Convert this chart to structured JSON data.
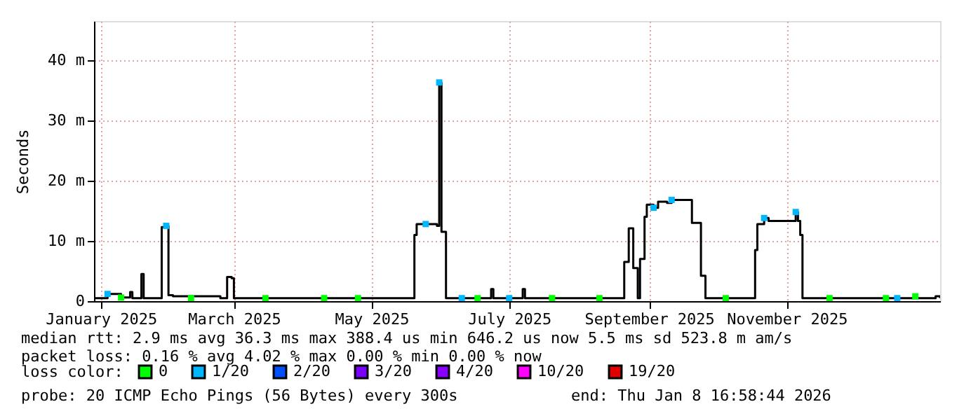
{
  "chart_data": {
    "type": "step",
    "ylabel": "Seconds",
    "legend_title": "loss color:",
    "legend": "bottom",
    "grid": true,
    "xlim": [
      "2024-12-29",
      "2026-01-08"
    ],
    "xticks": [
      {
        "value": "2025-01-01",
        "label": "January 2025"
      },
      {
        "value": "2025-03-01",
        "label": "March 2025"
      },
      {
        "value": "2025-05-01",
        "label": "May 2025"
      },
      {
        "value": "2025-07-01",
        "label": "July 2025"
      },
      {
        "value": "2025-09-01",
        "label": "September 2025"
      },
      {
        "value": "2025-11-01",
        "label": "November 2025"
      }
    ],
    "ylim": [
      0,
      46.5
    ],
    "yticks": [
      {
        "value": 0,
        "label": "0"
      },
      {
        "value": 10,
        "label": "10 m"
      },
      {
        "value": 20,
        "label": "20 m"
      },
      {
        "value": 30,
        "label": "30 m"
      },
      {
        "value": 40,
        "label": "40 m"
      }
    ],
    "series": [
      {
        "color": "#000000",
        "line_style": "solid",
        "x": [
          "2024-12-29",
          "2025-01-04",
          "2025-01-10",
          "2025-01-14",
          "2025-01-15",
          "2025-01-19",
          "2025-01-20",
          "2025-01-28",
          "2025-01-30",
          "2025-01-31",
          "2025-02-02",
          "2025-02-23",
          "2025-02-26",
          "2025-02-28",
          "2025-03-01",
          "2025-05-20",
          "2025-05-21",
          "2025-05-30",
          "2025-05-31",
          "2025-06-01",
          "2025-06-03",
          "2025-06-23",
          "2025-06-24",
          "2025-07-07",
          "2025-07-08",
          "2025-08-21",
          "2025-08-23",
          "2025-08-25",
          "2025-08-27",
          "2025-08-28",
          "2025-08-30",
          "2025-08-31",
          "2025-09-03",
          "2025-09-05",
          "2025-09-09",
          "2025-09-11",
          "2025-09-19",
          "2025-09-20",
          "2025-09-24",
          "2025-09-26",
          "2025-10-18",
          "2025-10-19",
          "2025-10-22",
          "2025-10-24",
          "2025-11-04",
          "2025-11-05",
          "2025-11-06",
          "2025-11-07",
          "2025-11-08",
          "2026-01-06",
          "2026-01-08"
        ],
        "values": [
          0.5,
          1.2,
          0.6,
          1.5,
          0.5,
          4.5,
          0.5,
          12.3,
          12.5,
          1.0,
          0.8,
          0.5,
          4.0,
          3.8,
          0.5,
          11.0,
          12.8,
          12.5,
          36.3,
          11.5,
          0.5,
          2.0,
          0.5,
          2.0,
          0.5,
          6.5,
          12.1,
          5.5,
          0.5,
          7.0,
          14.0,
          16.0,
          15.5,
          16.5,
          16.3,
          16.8,
          16.8,
          13.0,
          4.2,
          0.5,
          8.5,
          12.8,
          13.8,
          13.3,
          13.3,
          14.8,
          13.3,
          11.0,
          0.5,
          0.8,
          0.5
        ]
      },
      {
        "type": "scatter",
        "name": "0",
        "color": "#00ff00",
        "marker": "square",
        "x": [
          "2025-01-10",
          "2025-02-10",
          "2025-03-15",
          "2025-04-10",
          "2025-04-25",
          "2025-06-17",
          "2025-07-20",
          "2025-08-10",
          "2025-10-05",
          "2025-11-20",
          "2025-12-15",
          "2025-12-28"
        ],
        "values": [
          0.6,
          0.5,
          0.5,
          0.5,
          0.5,
          0.5,
          0.5,
          0.5,
          0.5,
          0.5,
          0.5,
          0.8
        ]
      },
      {
        "type": "scatter",
        "name": "1/20",
        "color": "#00b7ff",
        "marker": "square",
        "x": [
          "2025-01-04",
          "2025-01-30",
          "2025-05-25",
          "2025-05-31",
          "2025-06-10",
          "2025-07-01",
          "2025-09-03",
          "2025-09-11",
          "2025-10-22",
          "2025-11-05",
          "2025-12-20"
        ],
        "values": [
          1.2,
          12.5,
          12.8,
          36.3,
          0.5,
          0.5,
          15.5,
          16.8,
          13.8,
          14.8,
          0.5
        ]
      },
      {
        "type": "scatter",
        "name": "2/20",
        "color": "#0050ff",
        "marker": "square"
      },
      {
        "type": "scatter",
        "name": "3/20",
        "color": "#7a00ff",
        "marker": "square"
      },
      {
        "type": "scatter",
        "name": "4/20",
        "color": "#8a00ff",
        "marker": "square"
      },
      {
        "type": "scatter",
        "name": "10/20",
        "color": "#ff00ff",
        "marker": "square"
      },
      {
        "type": "scatter",
        "name": "19/20",
        "color": "#e00000",
        "marker": "square"
      }
    ],
    "annotations": [
      "median rtt:  2.9 ms avg  36.3 ms max  388.4 us min  646.2 us now  5.5 ms sd  523.8 m am/s",
      "packet loss: 0.16 % avg  4.02 % max  0.00 % min  0.00 % now",
      "probe:       20 ICMP Echo Pings (56 Bytes) every 300s",
      "end: Thu Jan  8 16:58:44 2026"
    ]
  }
}
